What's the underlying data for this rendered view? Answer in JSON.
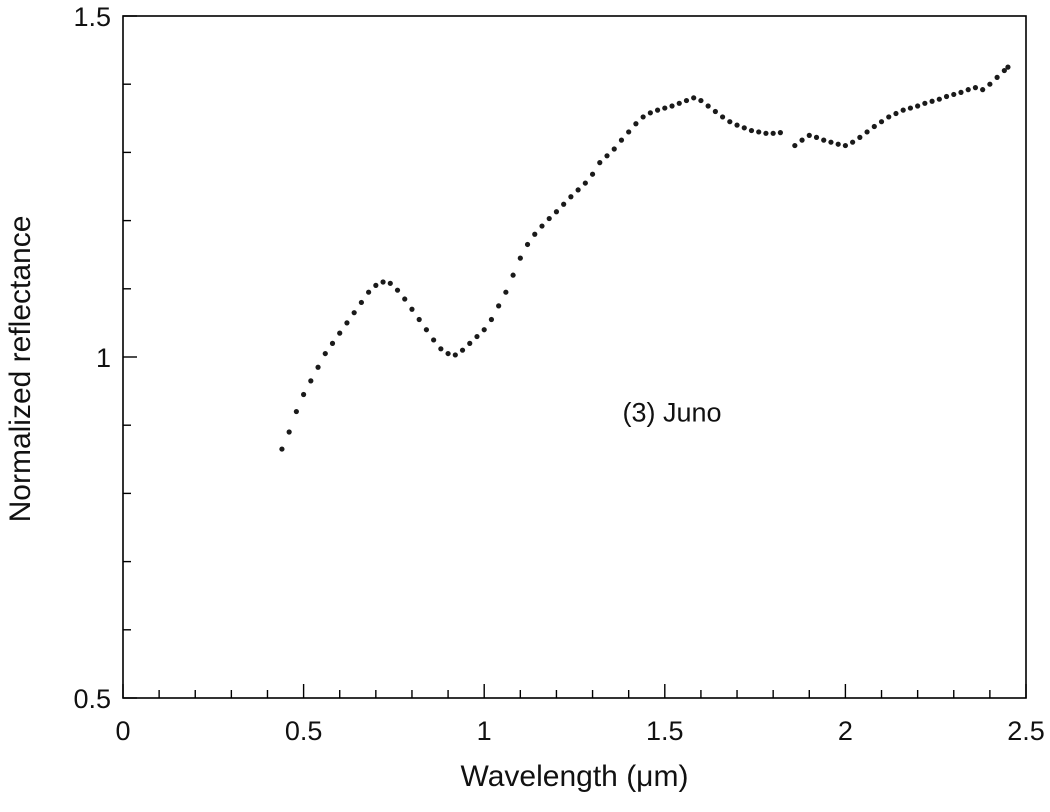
{
  "chart_data": {
    "type": "scatter",
    "title": "",
    "xlabel": "Wavelength (μm)",
    "ylabel": "Normalized reflectance",
    "xlim": [
      0,
      2.5
    ],
    "ylim": [
      0.5,
      1.5
    ],
    "x_ticks": [
      "0",
      "0.5",
      "1",
      "1.5",
      "2",
      "2.5"
    ],
    "y_ticks": [
      "0.5",
      "1",
      "1.5"
    ],
    "grid": false,
    "legend": "none",
    "annotation": "(3) Juno",
    "series": [
      {
        "color": "#1a1a1a",
        "points": [
          [
            0.44,
            0.865
          ],
          [
            0.46,
            0.89
          ],
          [
            0.48,
            0.92
          ],
          [
            0.5,
            0.945
          ],
          [
            0.52,
            0.965
          ],
          [
            0.54,
            0.985
          ],
          [
            0.56,
            1.005
          ],
          [
            0.58,
            1.02
          ],
          [
            0.6,
            1.035
          ],
          [
            0.62,
            1.05
          ],
          [
            0.64,
            1.065
          ],
          [
            0.66,
            1.08
          ],
          [
            0.68,
            1.095
          ],
          [
            0.7,
            1.105
          ],
          [
            0.72,
            1.11
          ],
          [
            0.74,
            1.108
          ],
          [
            0.76,
            1.098
          ],
          [
            0.78,
            1.085
          ],
          [
            0.8,
            1.07
          ],
          [
            0.82,
            1.055
          ],
          [
            0.84,
            1.04
          ],
          [
            0.86,
            1.025
          ],
          [
            0.88,
            1.012
          ],
          [
            0.9,
            1.005
          ],
          [
            0.92,
            1.003
          ],
          [
            0.94,
            1.01
          ],
          [
            0.96,
            1.02
          ],
          [
            0.98,
            1.03
          ],
          [
            1.0,
            1.04
          ],
          [
            1.02,
            1.055
          ],
          [
            1.04,
            1.075
          ],
          [
            1.06,
            1.095
          ],
          [
            1.08,
            1.12
          ],
          [
            1.1,
            1.145
          ],
          [
            1.12,
            1.165
          ],
          [
            1.14,
            1.18
          ],
          [
            1.16,
            1.192
          ],
          [
            1.18,
            1.203
          ],
          [
            1.2,
            1.213
          ],
          [
            1.22,
            1.224
          ],
          [
            1.24,
            1.235
          ],
          [
            1.26,
            1.245
          ],
          [
            1.28,
            1.255
          ],
          [
            1.3,
            1.268
          ],
          [
            1.32,
            1.285
          ],
          [
            1.34,
            1.295
          ],
          [
            1.36,
            1.305
          ],
          [
            1.38,
            1.318
          ],
          [
            1.4,
            1.33
          ],
          [
            1.42,
            1.342
          ],
          [
            1.44,
            1.352
          ],
          [
            1.46,
            1.358
          ],
          [
            1.48,
            1.362
          ],
          [
            1.5,
            1.365
          ],
          [
            1.52,
            1.368
          ],
          [
            1.54,
            1.372
          ],
          [
            1.56,
            1.376
          ],
          [
            1.58,
            1.38
          ],
          [
            1.6,
            1.376
          ],
          [
            1.62,
            1.368
          ],
          [
            1.64,
            1.36
          ],
          [
            1.66,
            1.352
          ],
          [
            1.68,
            1.345
          ],
          [
            1.7,
            1.34
          ],
          [
            1.72,
            1.336
          ],
          [
            1.74,
            1.332
          ],
          [
            1.76,
            1.33
          ],
          [
            1.78,
            1.328
          ],
          [
            1.8,
            1.328
          ],
          [
            1.82,
            1.329
          ],
          [
            1.86,
            1.31
          ],
          [
            1.88,
            1.318
          ],
          [
            1.9,
            1.325
          ],
          [
            1.92,
            1.322
          ],
          [
            1.94,
            1.318
          ],
          [
            1.96,
            1.315
          ],
          [
            1.98,
            1.312
          ],
          [
            2.0,
            1.31
          ],
          [
            2.02,
            1.315
          ],
          [
            2.04,
            1.322
          ],
          [
            2.06,
            1.33
          ],
          [
            2.08,
            1.338
          ],
          [
            2.1,
            1.345
          ],
          [
            2.12,
            1.352
          ],
          [
            2.14,
            1.357
          ],
          [
            2.16,
            1.362
          ],
          [
            2.18,
            1.365
          ],
          [
            2.2,
            1.368
          ],
          [
            2.22,
            1.372
          ],
          [
            2.24,
            1.375
          ],
          [
            2.26,
            1.378
          ],
          [
            2.28,
            1.382
          ],
          [
            2.3,
            1.385
          ],
          [
            2.32,
            1.388
          ],
          [
            2.34,
            1.392
          ],
          [
            2.36,
            1.395
          ],
          [
            2.38,
            1.392
          ],
          [
            2.4,
            1.4
          ],
          [
            2.42,
            1.41
          ],
          [
            2.44,
            1.42
          ],
          [
            2.45,
            1.425
          ]
        ]
      }
    ]
  }
}
